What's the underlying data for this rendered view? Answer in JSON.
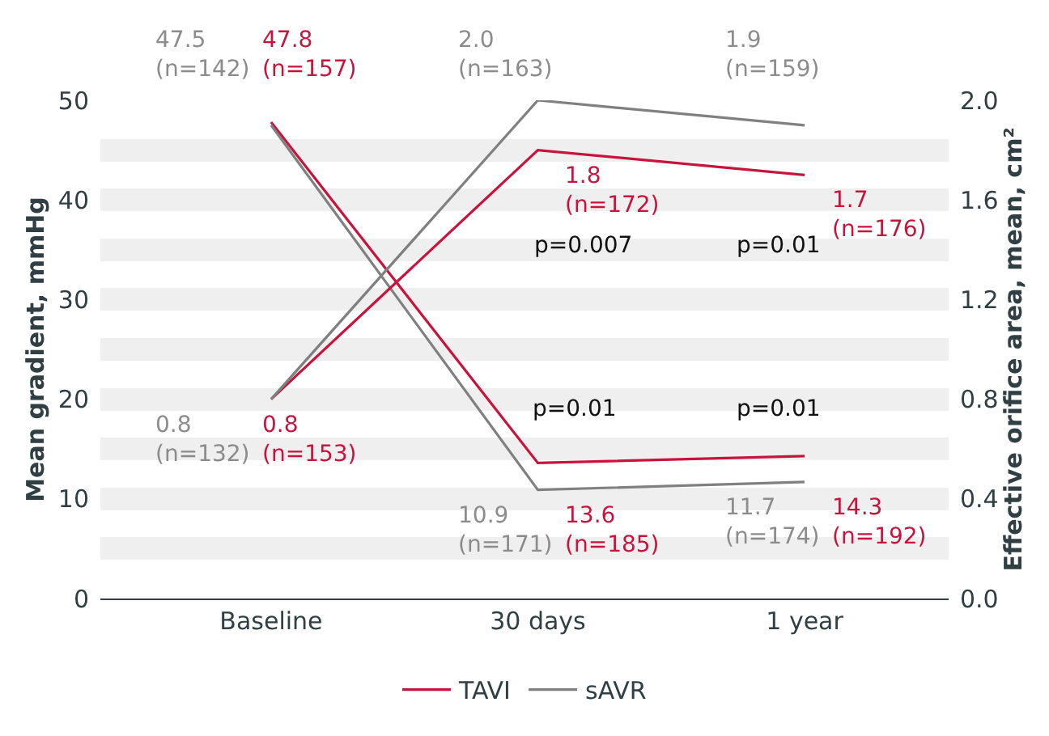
{
  "chart_data": {
    "type": "line",
    "categories": [
      "Baseline",
      "30 days",
      "1 year"
    ],
    "ylabel": "Mean gradient, mmHg",
    "y2label": "Effective orifice area, mean, cm²",
    "ylim": [
      0,
      50
    ],
    "yticks": [
      0,
      {
        "value": 5,
        "label": null
      },
      10,
      {
        "value": 15,
        "label": null
      },
      20,
      {
        "value": 25,
        "label": null
      },
      30,
      {
        "value": 35,
        "label": null
      },
      40,
      {
        "value": 45,
        "label": null
      },
      50
    ],
    "y2lim": [
      0,
      2.0
    ],
    "y2ticks": [
      {
        "value": 0,
        "label": "0.0"
      },
      {
        "value": 0.4,
        "label": "0.4"
      },
      {
        "value": 0.8,
        "label": "0.8"
      },
      {
        "value": 1.2,
        "label": "1.2"
      },
      {
        "value": 1.6,
        "label": "1.6"
      },
      {
        "value": 2.0,
        "label": "2.0"
      }
    ],
    "series": [
      {
        "name": "TAVI",
        "color": "#c8143c",
        "values": [
          47.8,
          13.6,
          14.3
        ],
        "value_labels": [
          "47.8 (n=157)",
          "13.6 (n=185)",
          "14.3 (n=192)"
        ]
      },
      {
        "name": "sAVR",
        "color": "#808080",
        "values": [
          47.5,
          10.9,
          11.7
        ],
        "value_labels": [
          "47.5 (n=142)",
          "10.9 (n=171)",
          "11.7 (n=174)"
        ]
      },
      {
        "color": "#c8143c",
        "axis": "y2",
        "values": [
          0.8,
          1.8,
          1.7
        ],
        "value_labels": [
          "0.8 (n=153)",
          "1.8 (n=172)",
          "1.7 (n=176)"
        ]
      },
      {
        "color": "#808080",
        "axis": "y2",
        "values": [
          0.8,
          2.0,
          1.9
        ],
        "value_labels": [
          "0.8 (n=132)",
          "2.0 (n=163)",
          "1.9 (n=159)"
        ]
      }
    ],
    "annotations": [
      "p=0.007",
      "p=0.01",
      "p=0.01",
      "p=0.01"
    ],
    "grid": "y",
    "legend": "bottom",
    "marker": "none",
    "line_style": "solid"
  }
}
